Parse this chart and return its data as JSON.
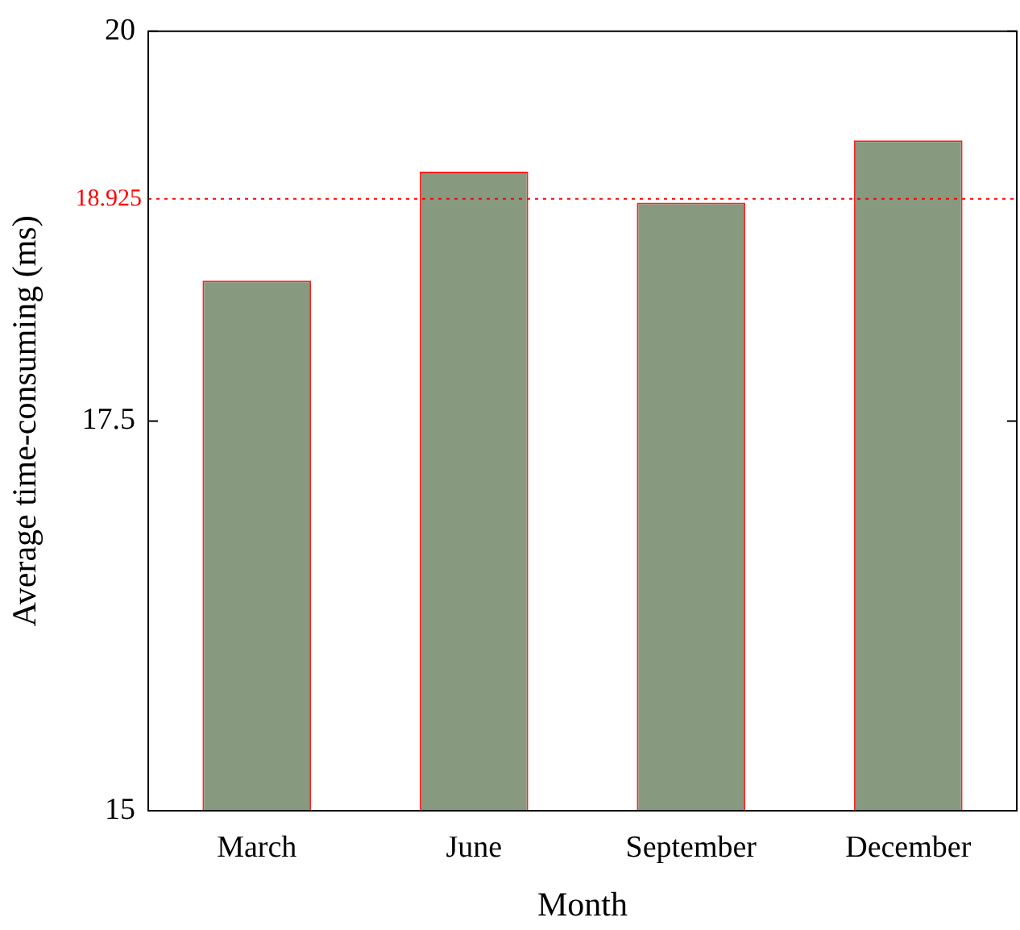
{
  "chart_data": {
    "type": "bar",
    "xlabel": "Month",
    "ylabel": "Average time-consuming (ms)",
    "categories": [
      "March",
      "June",
      "September",
      "December"
    ],
    "values": [
      18.4,
      19.1,
      18.9,
      19.3
    ],
    "color": "#87997f",
    "ylim": [
      15,
      20
    ],
    "yticks": [
      15,
      17.5,
      20
    ],
    "grid": false,
    "legend": false,
    "ref_lines": [
      {
        "axis": "y",
        "value": 18.925,
        "label": "18.925",
        "color": "#ff0000",
        "line_style": "dotted"
      }
    ]
  }
}
